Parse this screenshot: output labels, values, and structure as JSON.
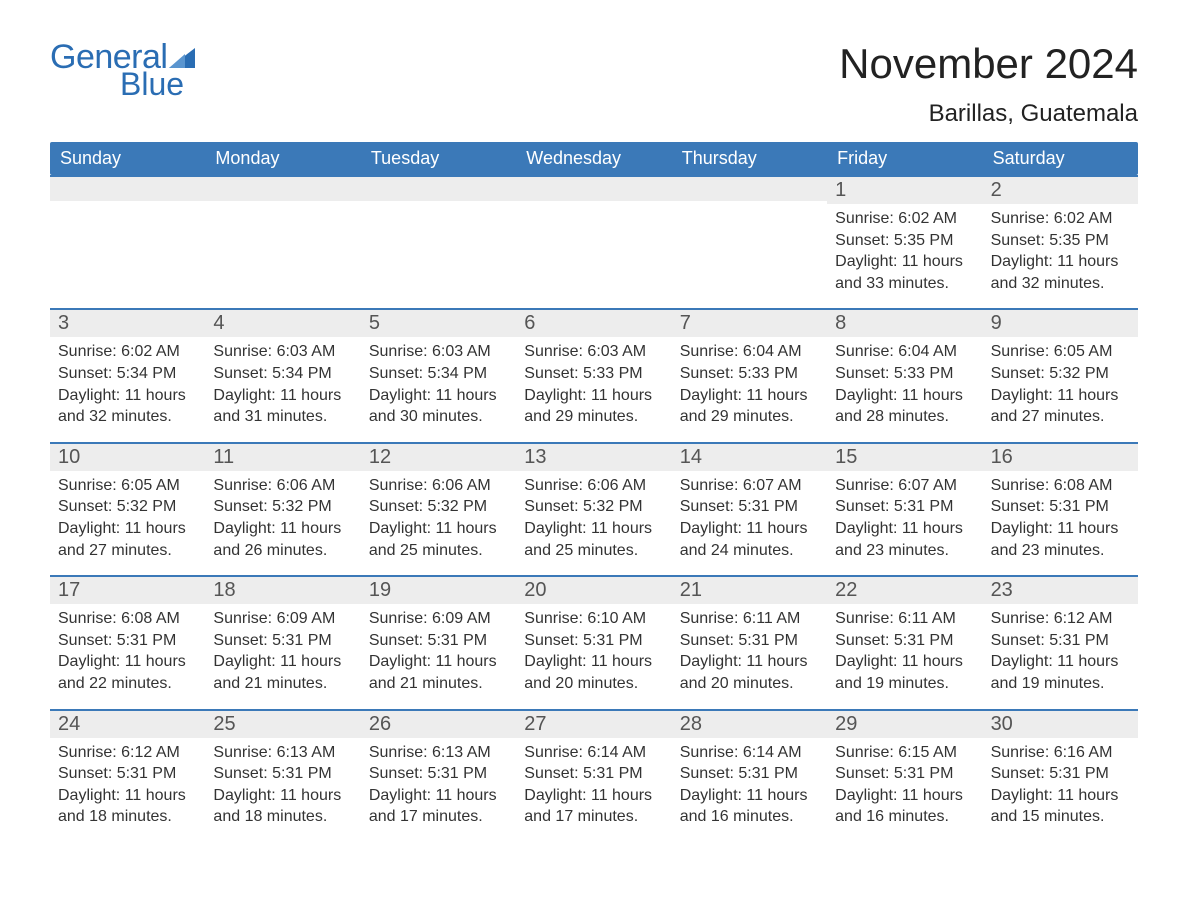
{
  "brand": {
    "general": "General",
    "blue": "Blue",
    "logo_color": "#2a6db3"
  },
  "title": "November 2024",
  "location": "Barillas, Guatemala",
  "colors": {
    "header_bg": "#3b79b8",
    "header_text": "#ffffff",
    "day_header_bg": "#ededed",
    "day_header_border": "#3b79b8",
    "body_text": "#333333",
    "background": "#ffffff"
  },
  "fonts": {
    "title_size_pt": 32,
    "location_size_pt": 18,
    "dow_size_pt": 14,
    "daynum_size_pt": 15,
    "body_size_pt": 12
  },
  "days_of_week": [
    "Sunday",
    "Monday",
    "Tuesday",
    "Wednesday",
    "Thursday",
    "Friday",
    "Saturday"
  ],
  "weeks": [
    [
      {
        "empty": true
      },
      {
        "empty": true
      },
      {
        "empty": true
      },
      {
        "empty": true
      },
      {
        "empty": true
      },
      {
        "num": "1",
        "sunrise": "Sunrise: 6:02 AM",
        "sunset": "Sunset: 5:35 PM",
        "daylight": "Daylight: 11 hours and 33 minutes."
      },
      {
        "num": "2",
        "sunrise": "Sunrise: 6:02 AM",
        "sunset": "Sunset: 5:35 PM",
        "daylight": "Daylight: 11 hours and 32 minutes."
      }
    ],
    [
      {
        "num": "3",
        "sunrise": "Sunrise: 6:02 AM",
        "sunset": "Sunset: 5:34 PM",
        "daylight": "Daylight: 11 hours and 32 minutes."
      },
      {
        "num": "4",
        "sunrise": "Sunrise: 6:03 AM",
        "sunset": "Sunset: 5:34 PM",
        "daylight": "Daylight: 11 hours and 31 minutes."
      },
      {
        "num": "5",
        "sunrise": "Sunrise: 6:03 AM",
        "sunset": "Sunset: 5:34 PM",
        "daylight": "Daylight: 11 hours and 30 minutes."
      },
      {
        "num": "6",
        "sunrise": "Sunrise: 6:03 AM",
        "sunset": "Sunset: 5:33 PM",
        "daylight": "Daylight: 11 hours and 29 minutes."
      },
      {
        "num": "7",
        "sunrise": "Sunrise: 6:04 AM",
        "sunset": "Sunset: 5:33 PM",
        "daylight": "Daylight: 11 hours and 29 minutes."
      },
      {
        "num": "8",
        "sunrise": "Sunrise: 6:04 AM",
        "sunset": "Sunset: 5:33 PM",
        "daylight": "Daylight: 11 hours and 28 minutes."
      },
      {
        "num": "9",
        "sunrise": "Sunrise: 6:05 AM",
        "sunset": "Sunset: 5:32 PM",
        "daylight": "Daylight: 11 hours and 27 minutes."
      }
    ],
    [
      {
        "num": "10",
        "sunrise": "Sunrise: 6:05 AM",
        "sunset": "Sunset: 5:32 PM",
        "daylight": "Daylight: 11 hours and 27 minutes."
      },
      {
        "num": "11",
        "sunrise": "Sunrise: 6:06 AM",
        "sunset": "Sunset: 5:32 PM",
        "daylight": "Daylight: 11 hours and 26 minutes."
      },
      {
        "num": "12",
        "sunrise": "Sunrise: 6:06 AM",
        "sunset": "Sunset: 5:32 PM",
        "daylight": "Daylight: 11 hours and 25 minutes."
      },
      {
        "num": "13",
        "sunrise": "Sunrise: 6:06 AM",
        "sunset": "Sunset: 5:32 PM",
        "daylight": "Daylight: 11 hours and 25 minutes."
      },
      {
        "num": "14",
        "sunrise": "Sunrise: 6:07 AM",
        "sunset": "Sunset: 5:31 PM",
        "daylight": "Daylight: 11 hours and 24 minutes."
      },
      {
        "num": "15",
        "sunrise": "Sunrise: 6:07 AM",
        "sunset": "Sunset: 5:31 PM",
        "daylight": "Daylight: 11 hours and 23 minutes."
      },
      {
        "num": "16",
        "sunrise": "Sunrise: 6:08 AM",
        "sunset": "Sunset: 5:31 PM",
        "daylight": "Daylight: 11 hours and 23 minutes."
      }
    ],
    [
      {
        "num": "17",
        "sunrise": "Sunrise: 6:08 AM",
        "sunset": "Sunset: 5:31 PM",
        "daylight": "Daylight: 11 hours and 22 minutes."
      },
      {
        "num": "18",
        "sunrise": "Sunrise: 6:09 AM",
        "sunset": "Sunset: 5:31 PM",
        "daylight": "Daylight: 11 hours and 21 minutes."
      },
      {
        "num": "19",
        "sunrise": "Sunrise: 6:09 AM",
        "sunset": "Sunset: 5:31 PM",
        "daylight": "Daylight: 11 hours and 21 minutes."
      },
      {
        "num": "20",
        "sunrise": "Sunrise: 6:10 AM",
        "sunset": "Sunset: 5:31 PM",
        "daylight": "Daylight: 11 hours and 20 minutes."
      },
      {
        "num": "21",
        "sunrise": "Sunrise: 6:11 AM",
        "sunset": "Sunset: 5:31 PM",
        "daylight": "Daylight: 11 hours and 20 minutes."
      },
      {
        "num": "22",
        "sunrise": "Sunrise: 6:11 AM",
        "sunset": "Sunset: 5:31 PM",
        "daylight": "Daylight: 11 hours and 19 minutes."
      },
      {
        "num": "23",
        "sunrise": "Sunrise: 6:12 AM",
        "sunset": "Sunset: 5:31 PM",
        "daylight": "Daylight: 11 hours and 19 minutes."
      }
    ],
    [
      {
        "num": "24",
        "sunrise": "Sunrise: 6:12 AM",
        "sunset": "Sunset: 5:31 PM",
        "daylight": "Daylight: 11 hours and 18 minutes."
      },
      {
        "num": "25",
        "sunrise": "Sunrise: 6:13 AM",
        "sunset": "Sunset: 5:31 PM",
        "daylight": "Daylight: 11 hours and 18 minutes."
      },
      {
        "num": "26",
        "sunrise": "Sunrise: 6:13 AM",
        "sunset": "Sunset: 5:31 PM",
        "daylight": "Daylight: 11 hours and 17 minutes."
      },
      {
        "num": "27",
        "sunrise": "Sunrise: 6:14 AM",
        "sunset": "Sunset: 5:31 PM",
        "daylight": "Daylight: 11 hours and 17 minutes."
      },
      {
        "num": "28",
        "sunrise": "Sunrise: 6:14 AM",
        "sunset": "Sunset: 5:31 PM",
        "daylight": "Daylight: 11 hours and 16 minutes."
      },
      {
        "num": "29",
        "sunrise": "Sunrise: 6:15 AM",
        "sunset": "Sunset: 5:31 PM",
        "daylight": "Daylight: 11 hours and 16 minutes."
      },
      {
        "num": "30",
        "sunrise": "Sunrise: 6:16 AM",
        "sunset": "Sunset: 5:31 PM",
        "daylight": "Daylight: 11 hours and 15 minutes."
      }
    ]
  ]
}
